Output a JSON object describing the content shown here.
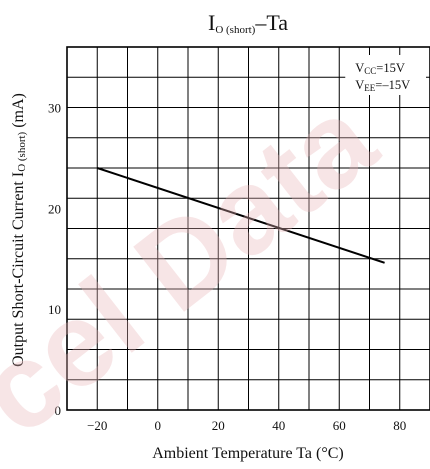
{
  "chart_data": {
    "type": "line",
    "title": {
      "main": "I",
      "sub": "O (short)",
      "rest": "–Ta"
    },
    "xlabel": "Ambient Temperature  Ta (°C)",
    "ylabel": {
      "main": "Output Short-Circuit Current  I",
      "sub": "O (short)",
      "rest": " (mA)"
    },
    "xlim": [
      -30,
      90
    ],
    "ylim": [
      0,
      36
    ],
    "x_ticks": [
      -20,
      0,
      20,
      40,
      60,
      80
    ],
    "x_tick_labels": [
      "−20",
      "0",
      "20",
      "40",
      "60",
      "80"
    ],
    "y_ticks": [
      0,
      10,
      20,
      30
    ],
    "y_tick_labels": [
      "0",
      "10",
      "20",
      "30"
    ],
    "grid": true,
    "legend_position": "top-right",
    "conditions": [
      {
        "main": "V",
        "sub": "CC",
        "rest": "=15V"
      },
      {
        "main": "V",
        "sub": "EE",
        "rest": "=–15V"
      }
    ],
    "series": [
      {
        "x": [
          -20,
          75
        ],
        "y": [
          24,
          14.6
        ]
      }
    ]
  },
  "watermark": {
    "text": "cel Data",
    "color": "#e8b4b8"
  }
}
